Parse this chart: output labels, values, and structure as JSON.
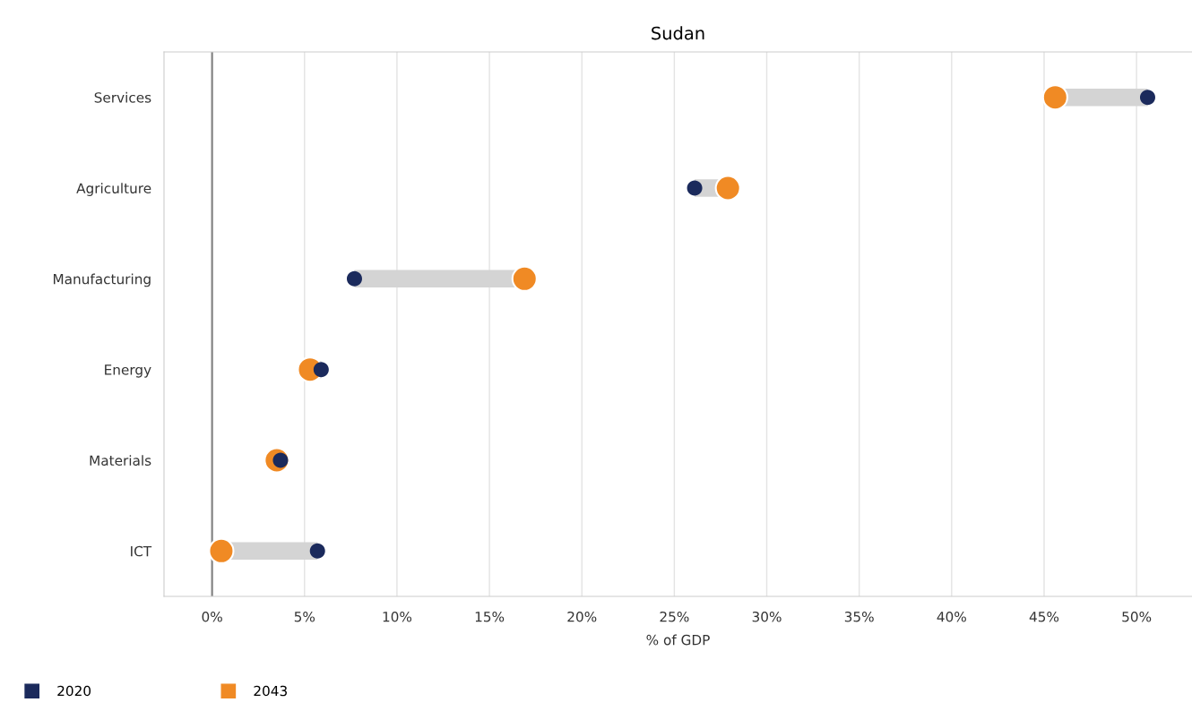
{
  "chart_data": {
    "type": "scatter",
    "orientation": "horizontal",
    "title": "Sudan",
    "xlabel": "% of GDP",
    "categories": [
      "Services",
      "Agriculture",
      "Manufacturing",
      "Energy",
      "Materials",
      "ICT"
    ],
    "series": [
      {
        "name": "2020",
        "color": "#1b2a5c",
        "values": [
          50.6,
          26.1,
          7.7,
          5.9,
          3.7,
          5.7
        ]
      },
      {
        "name": "2043",
        "color": "#f08a24",
        "values": [
          45.6,
          27.9,
          16.9,
          5.3,
          3.5,
          0.5
        ]
      }
    ],
    "xlim": [
      -2.6,
      53
    ],
    "xticks": [
      {
        "value": 0,
        "label": "0%"
      },
      {
        "value": 5,
        "label": "5%"
      },
      {
        "value": 10,
        "label": "10%"
      },
      {
        "value": 15,
        "label": "15%"
      },
      {
        "value": 20,
        "label": "20%"
      },
      {
        "value": 25,
        "label": "25%"
      },
      {
        "value": 30,
        "label": "30%"
      },
      {
        "value": 35,
        "label": "35%"
      },
      {
        "value": 40,
        "label": "40%"
      },
      {
        "value": 45,
        "label": "45%"
      },
      {
        "value": 50,
        "label": "50%"
      }
    ],
    "ref_lines": [
      {
        "axis": "x",
        "value": 0,
        "color": "#808080"
      }
    ],
    "grid": "x",
    "legend": "bottom left",
    "marker": "circle"
  }
}
